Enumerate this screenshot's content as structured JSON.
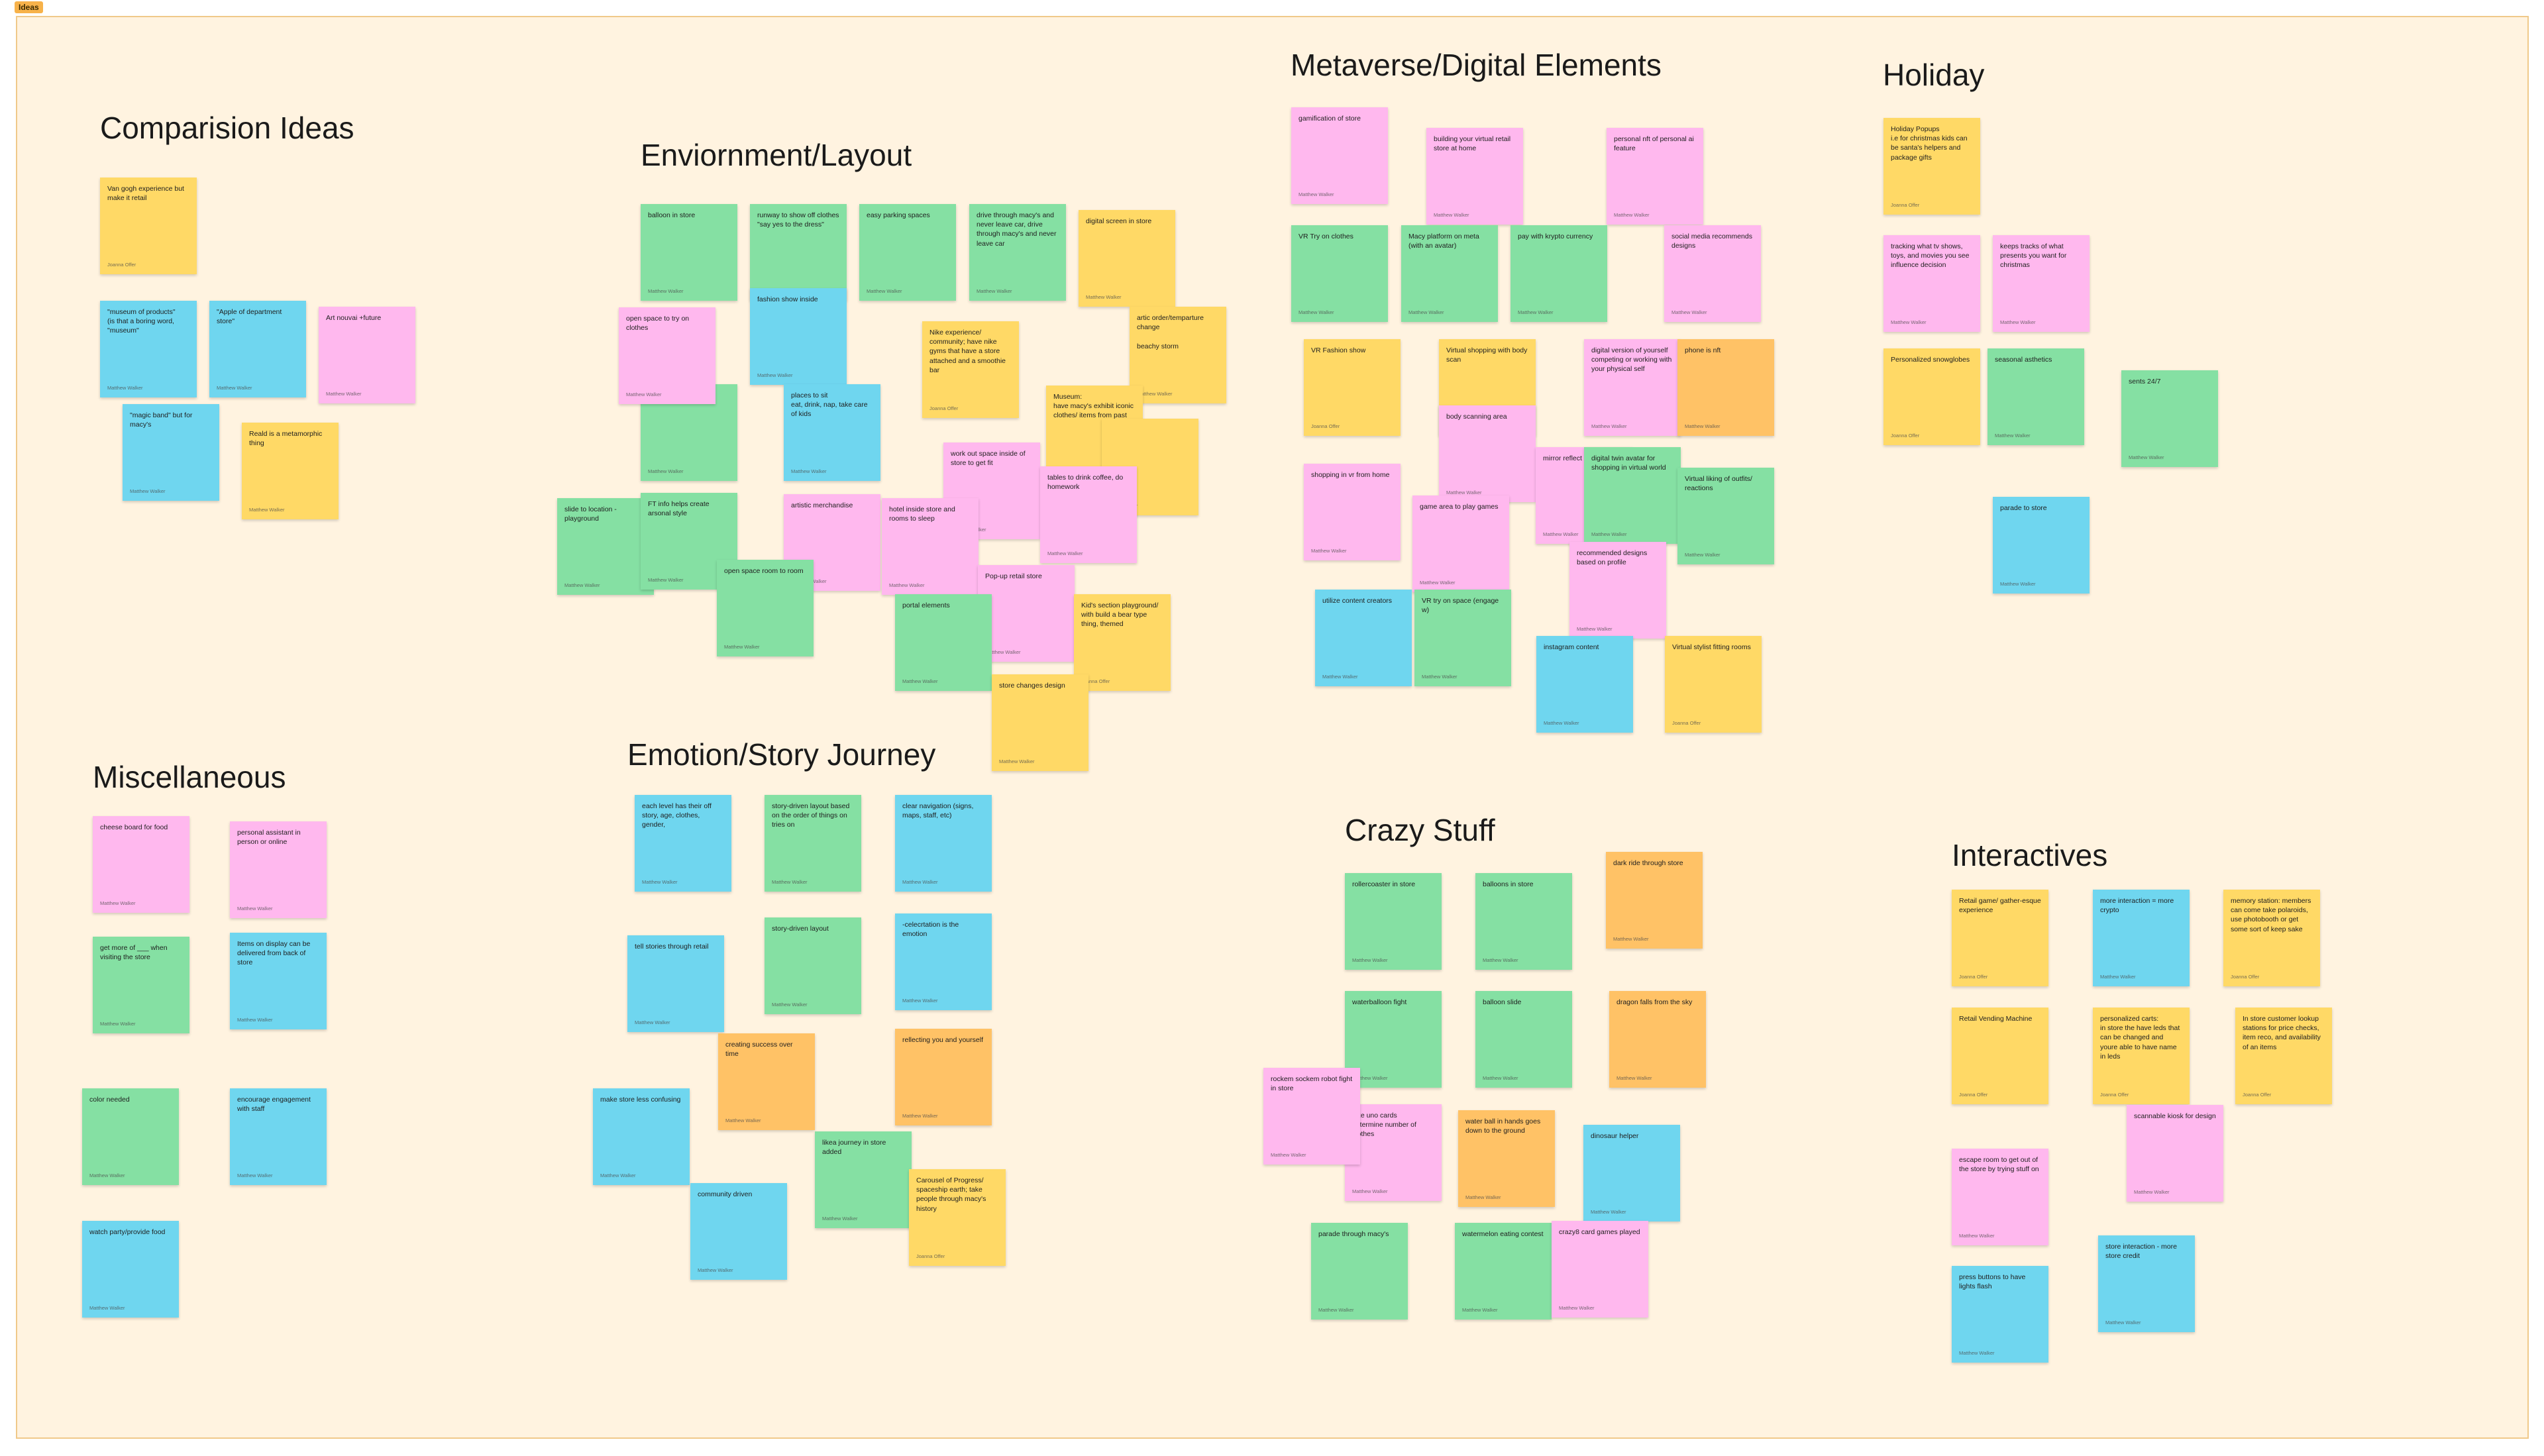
{
  "frame": {
    "tag": "Ideas"
  },
  "sections": {
    "comparision": "Comparision Ideas",
    "environment": "Enviornment/Layout",
    "metaverse": "Metaverse/Digital Elements",
    "holiday": "Holiday",
    "misc": "Miscellaneous",
    "emotion": "Emotion/Story Journey",
    "crazy": "Crazy Stuff",
    "interactives": "Interactives"
  },
  "authors": {
    "mw": "Matthew Walker",
    "jo": "Joanna Offer"
  },
  "colors": {
    "yellow": "#ffd966",
    "green": "#85e0a3",
    "blue": "#6fd6ef",
    "pink": "#ffb8ee",
    "orange": "#ffc266",
    "frame_bg": "#fff3e0",
    "frame_tag": "#f7b24a"
  },
  "notes": {
    "c1": "Van gogh experience but make it retail",
    "c2": "\"museum of products\"\n(is that a boring word, \"museum\"",
    "c3": "\"Apple of department store\"",
    "c4": "Art nouvai +future",
    "c5": "\"magic band\" but for macy's",
    "c6": "Reald is a metamorphic thing",
    "e1": "balloon in store",
    "e2": "runway to show off clothes \"say yes to the dress\"",
    "e3": "easy parking spaces",
    "e4": "drive through macy's and never leave car, drive through macy's and never leave car",
    "e5": "digital screen in store",
    "e6": "open space to try on clothes",
    "e7": "fashion show inside",
    "e8": "Nike experience/ community; have nike gyms that have a store attached and a smoothie bar",
    "e9": "artic order/temparture change\n\nbeachy storm",
    "e10": "clothes easier",
    "e11": "places to sit\neat, drink, nap, take care of kids",
    "e12": "Museum:\nhave macy's exhibit iconic clothes/ items from past",
    "e13": "work out space inside of store to get fit",
    "e14": "tables to drink coffee, do homework",
    "e15": "",
    "e16": "slide to location -playground",
    "e17": "FT info helps create arsonal style",
    "e18": "artistic merchandise",
    "e19": "hotel inside store and rooms to sleep",
    "e20": "open space room to room",
    "e21": "Pop-up retail store",
    "e22": "portal elements",
    "e23": "Kid's section playground/ with build a bear type thing, themed",
    "e24": "store changes design",
    "m1": "gamification of store",
    "m2": "building your virtual retail store at home",
    "m3": "personal nft of personal ai feature",
    "m4": "VR Try on clothes",
    "m5": "Macy platform on meta (with an avatar)",
    "m6": "pay with krypto currency",
    "m7": "social media recommends designs",
    "m8": "VR Fashion show",
    "m9": "Virtual shopping with body scan",
    "m10": "digital version of yourself competing or working with your physical self",
    "m11": "phone is nft",
    "m12": "body scanning area",
    "m13": "shopping in vr from home",
    "m14": "mirror reflect floor",
    "m15": "digital twin avatar for shopping in virtual world",
    "m16": "Virtual liking of outfits/ reactions",
    "m17": "game area to play games",
    "m18": "recommended designs based on profile",
    "m19": "utilize content creators",
    "m20": "VR try on space (engage w)",
    "m21": "instagram content",
    "m22": "Virtual stylist fitting rooms",
    "h1": "Holiday Popups\ni.e for christmas kids can be santa's helpers and package gifts",
    "h2": "tracking what tv shows, toys, and movies you see influence decision",
    "h3": "keeps tracks of what presents you want for christmas",
    "h4": "Personalized snowglobes",
    "h5": "seasonal asthetics",
    "h6": "sents 24/7",
    "h7": "parade to store",
    "x1": "cheese board for food",
    "x2": "personal assistant in person or online",
    "x3": "get more of ___ when visiting the store",
    "x4": "Items on display can be delivered from back of store",
    "x5": "color needed",
    "x6": "encourage engagement with staff",
    "x7": "watch party/provide food",
    "s1": "each level has their off story, age, clothes, gender,",
    "s2": "story-driven layout based on the order of things on tries on",
    "s3": "clear navigation (signs, maps, staff, etc)",
    "s4": "tell stories through retail",
    "s5": "story-driven layout",
    "s6": "-celecrtation is the emotion",
    "s7": "creating success over time",
    "s8": "rellecting you and yourself",
    "s9": "make store less confusing",
    "s10": "likea journey in store added",
    "s11": "Carousel of Progress/ spaceship earth; take people through macy's history",
    "s12": "community driven",
    "z1": "rollercoaster in store",
    "z2": "balloons in store",
    "z3": "dark ride through store",
    "z4": "waterballoon fight",
    "z5": "balloon slide",
    "z6": "dragon falls from the sky",
    "z7": "rockem sockem robot fight in store",
    "z8": "size uno cards\ndetermine number of clothes",
    "z9": "water ball in hands goes down to the ground",
    "z10": "dinosaur helper",
    "z11": "parade through macy's",
    "z12": "watermelon eating contest",
    "z13": "crazy8 card games played",
    "i1": "Retail game/ gather-esque experience",
    "i2": "more interaction = more crypto",
    "i3": "memory station: members can come take polaroids, use photobooth or get some sort of keep sake",
    "i4": "Retail Vending Machine",
    "i5": "personalized carts:\nin store the have leds that can be changed and youre able to have name in leds",
    "i6": "In store customer lookup stations for price checks, item reco, and availability of an items",
    "i7": "scannable kiosk for design",
    "i8": "escape room to get out of the store by trying stuff on",
    "i9": "press buttons to have lights flash",
    "i10": "store interaction - more store credit"
  }
}
